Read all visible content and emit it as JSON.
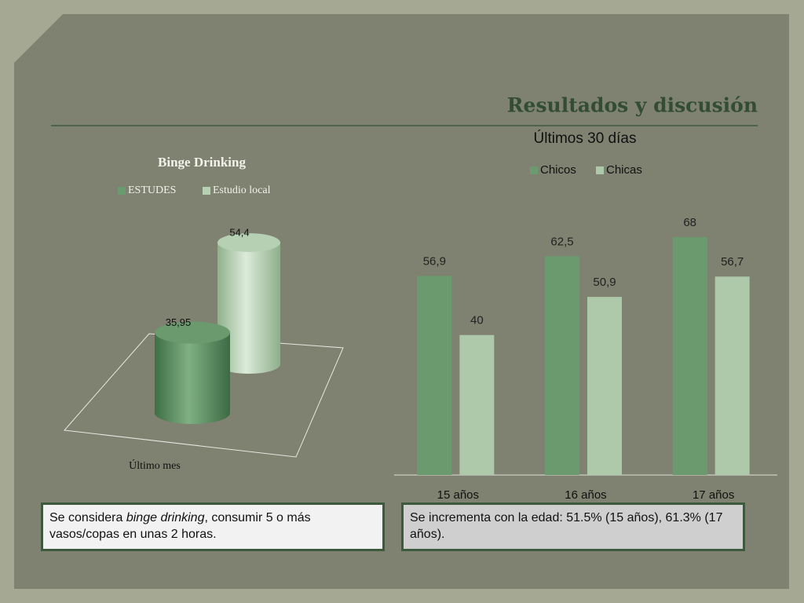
{
  "header": {
    "title": "Resultados y discusión"
  },
  "chart_data": [
    {
      "type": "bar",
      "shape": "cylinder",
      "title": "Binge Drinking",
      "categories": [
        "Último mes"
      ],
      "series": [
        {
          "name": "ESTUDES",
          "color": "#6a9a6e",
          "values": [
            35.95
          ],
          "value_labels": [
            "35,95"
          ]
        },
        {
          "name": "Estudio local",
          "color": "#b5d0b2",
          "values": [
            54.4
          ],
          "value_labels": [
            "54,4"
          ]
        }
      ],
      "ylim": [
        0,
        60
      ]
    },
    {
      "type": "bar",
      "title": "Últimos 30 días",
      "categories": [
        "15 años",
        "16 años",
        "17 años"
      ],
      "series": [
        {
          "name": "Chicos",
          "color": "#6a9a6e",
          "values": [
            56.9,
            62.5,
            68
          ],
          "value_labels": [
            "56,9",
            "62,5",
            "68"
          ]
        },
        {
          "name": "Chicas",
          "color": "#adc9aa",
          "values": [
            40,
            50.9,
            56.7
          ],
          "value_labels": [
            "40",
            "50,9",
            "56,7"
          ]
        }
      ],
      "ylim": [
        0,
        70
      ]
    }
  ],
  "notes": [
    {
      "parts": [
        "Se considera ",
        "binge drinking",
        ", consumir 5 o más vasos/copas en unas 2 horas."
      ]
    },
    {
      "text": "Se incrementa con la edad: 51.5% (15 años), 61.3% (17 años)."
    }
  ]
}
